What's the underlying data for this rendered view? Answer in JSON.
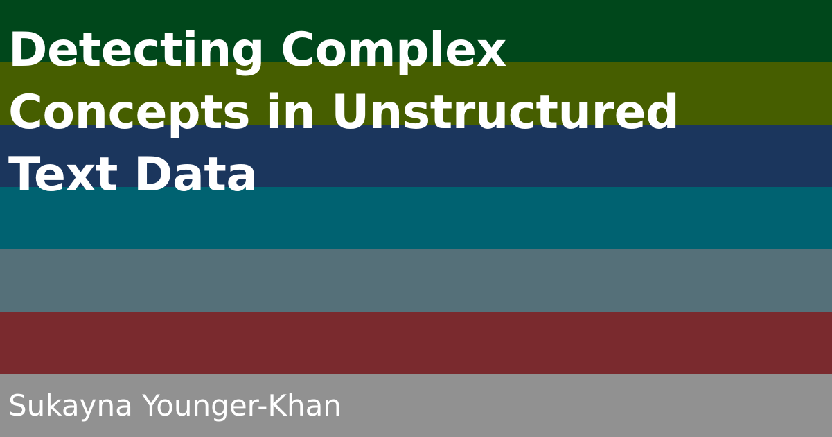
{
  "title": {
    "line1": "Detecting Complex",
    "line2": "Concepts in Unstructured",
    "line3": "Text Data"
  },
  "author": "Sukayna Younger-Khan",
  "stripe_colors": [
    "#00471b",
    "#465e00",
    "#1b365d",
    "#006271",
    "#557079",
    "#7a2a2e",
    "#919191"
  ]
}
